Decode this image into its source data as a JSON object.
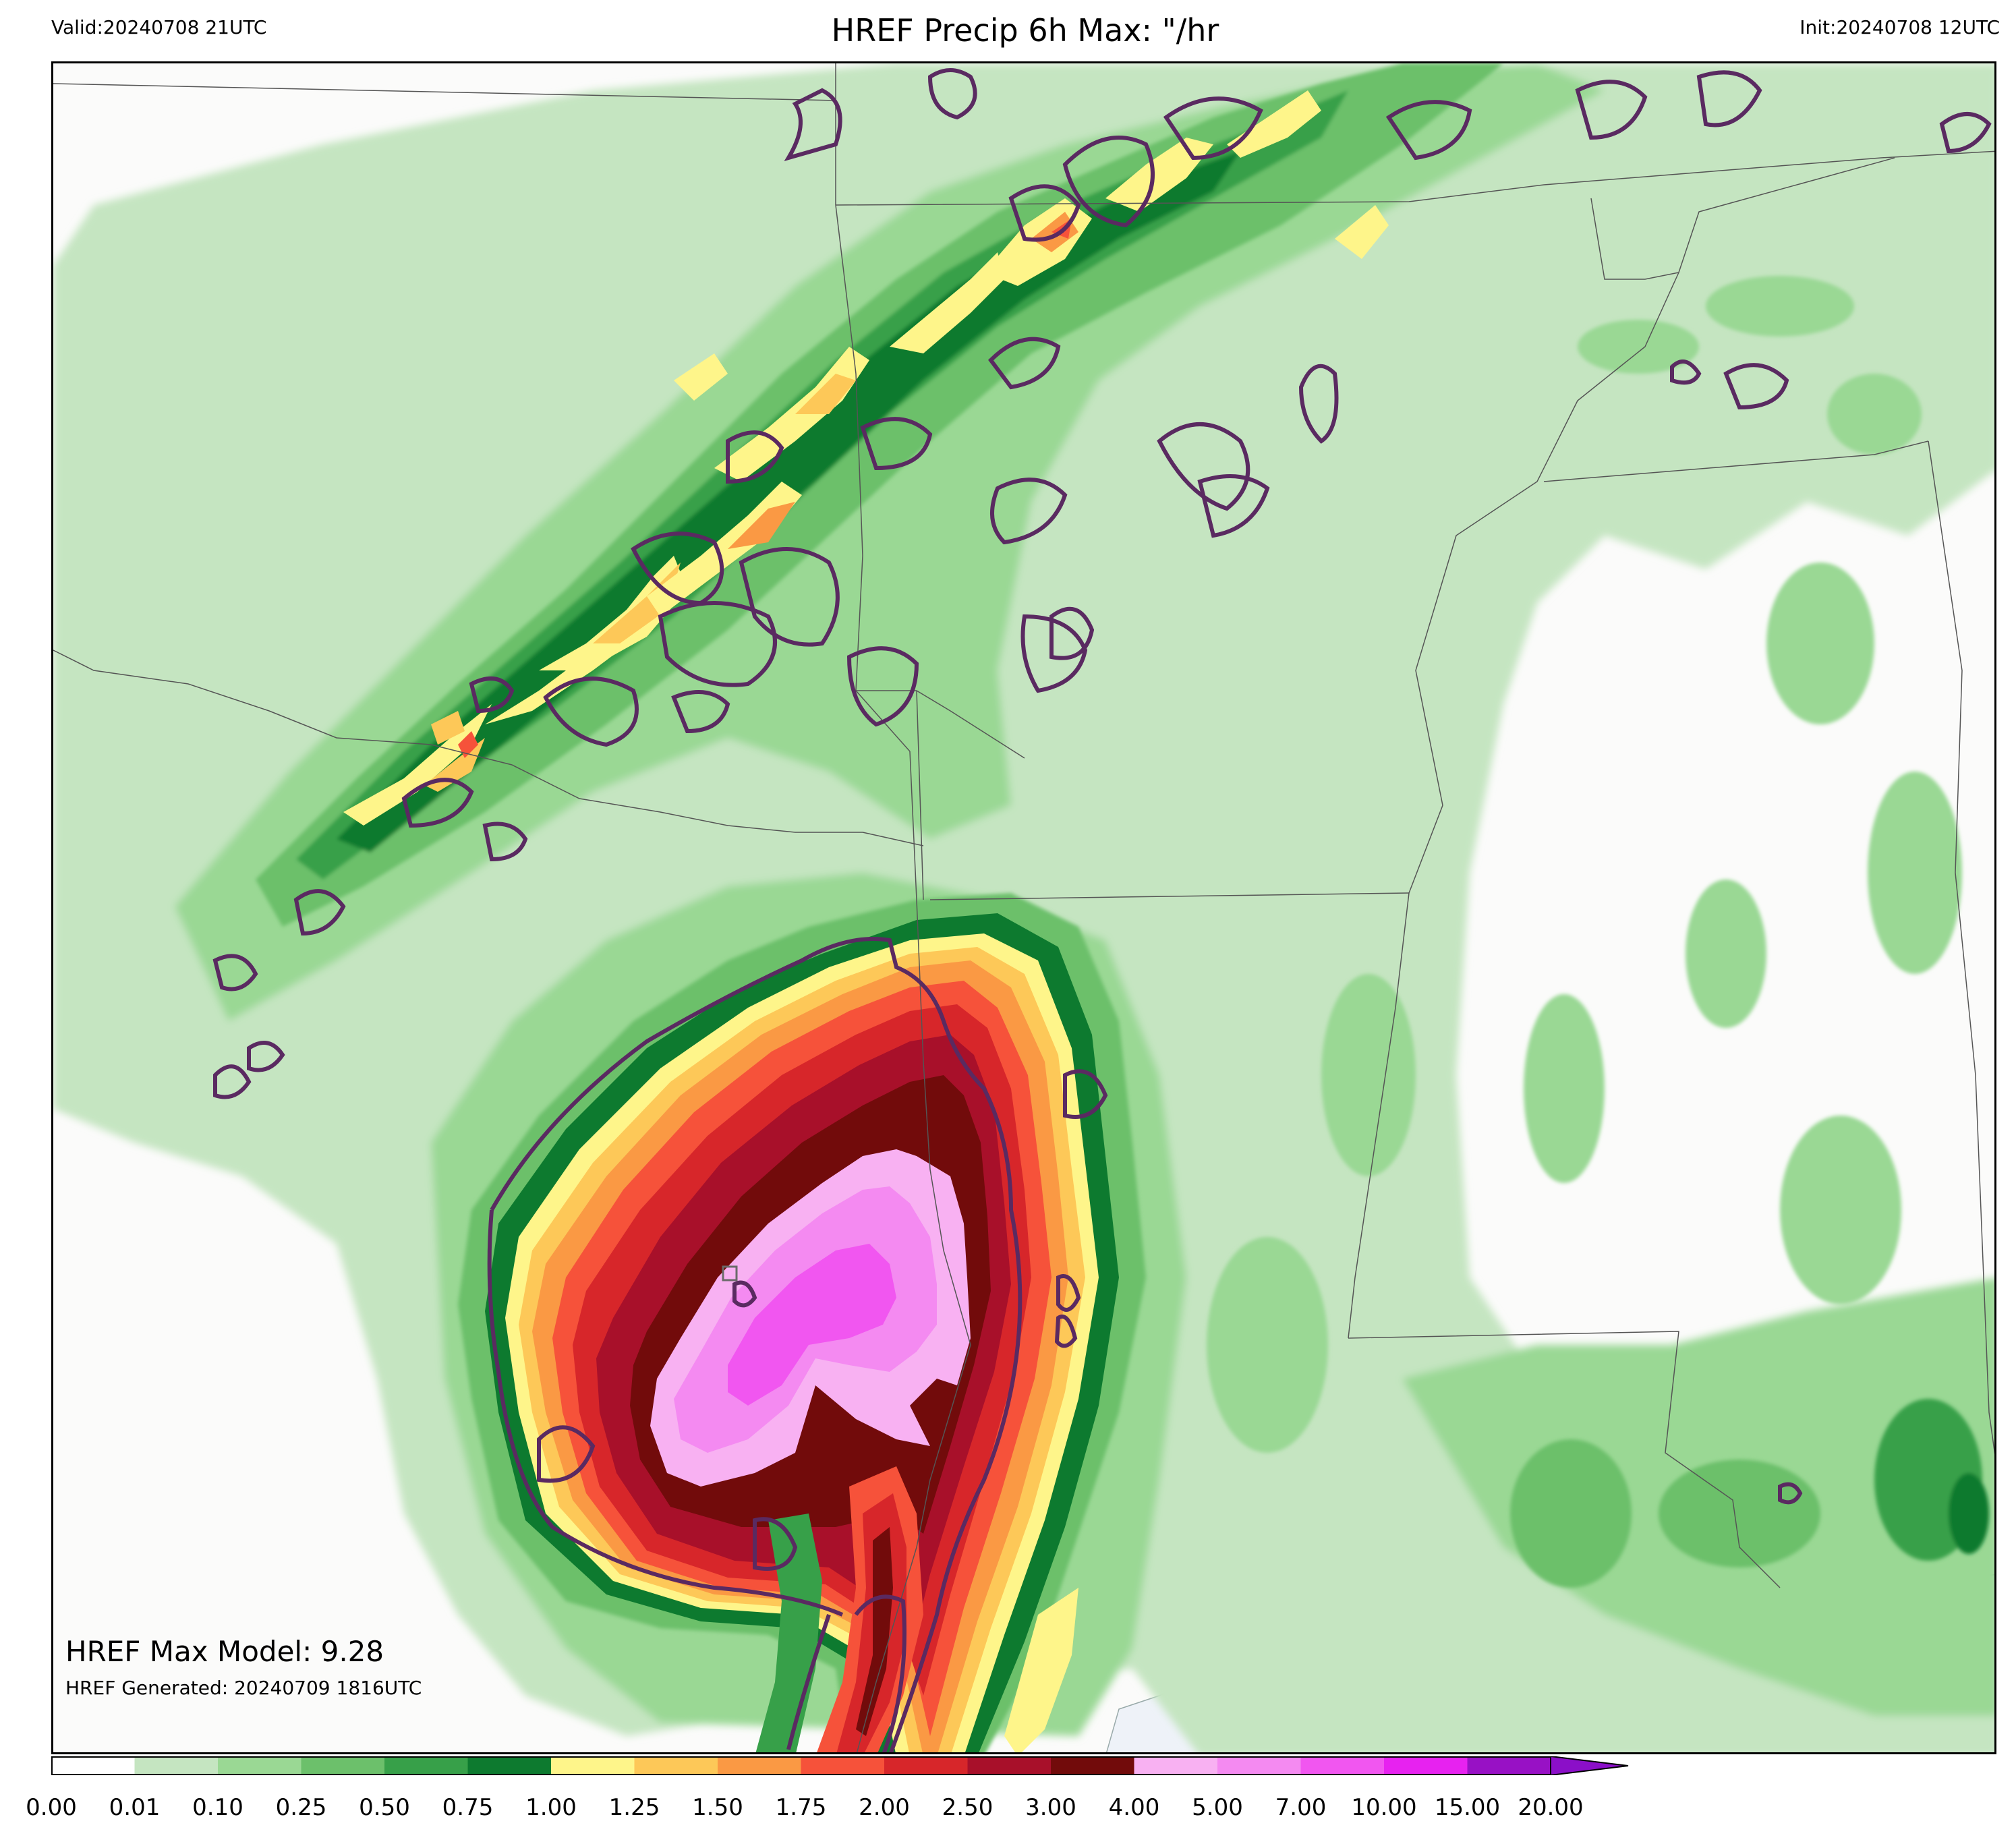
{
  "header": {
    "valid": "Valid:20240708 21UTC",
    "title": "HREF Precip 6h Max: \"/hr",
    "init": "Init:20240708 12UTC"
  },
  "annotations": {
    "max_model": "HREF Max Model: 9.28",
    "generated": "HREF Generated: 20240709 1816UTC"
  },
  "colorbar": {
    "ticks": [
      "0.00",
      "0.01",
      "0.10",
      "0.25",
      "0.50",
      "0.75",
      "1.00",
      "1.25",
      "1.50",
      "1.75",
      "2.00",
      "2.50",
      "3.00",
      "4.00",
      "5.00",
      "7.00",
      "10.00",
      "15.00",
      "20.00"
    ],
    "colors": [
      "#ffffff",
      "#c5e5c1",
      "#9ad894",
      "#6cc06b",
      "#37a049",
      "#0d7a2f",
      "#fef58a",
      "#fdc858",
      "#fa9944",
      "#f6523a",
      "#d7262a",
      "#a8102a",
      "#720b0b",
      "#f8b1f2",
      "#f48af1",
      "#f156f0",
      "#e722f0",
      "#9811c5"
    ],
    "extend_color": "#8b0fc8"
  },
  "map": {
    "ocean_color": "#eef2f8",
    "contour_color": "#5a2a61"
  }
}
